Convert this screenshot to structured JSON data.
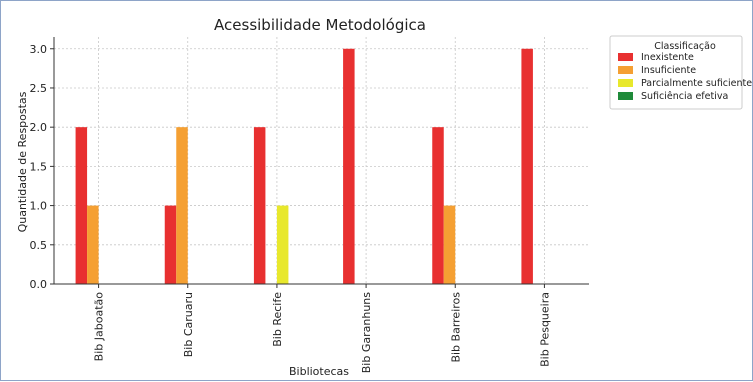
{
  "chart_data": {
    "type": "bar",
    "title": "Acessibilidade Metodológica",
    "xlabel": "Bibliotecas",
    "ylabel": "Quantidade de Respostas",
    "categories": [
      "Bib Jaboatão",
      "Bib Caruaru",
      "Bib Recife",
      "Bib Garanhuns",
      "Bib Barreiros",
      "Bib Pesqueira"
    ],
    "ylim": [
      0,
      3.15
    ],
    "yticks": [
      "0.0",
      "0.5",
      "1.0",
      "1.5",
      "2.0",
      "2.5",
      "3.0"
    ],
    "grid": true,
    "legend": {
      "title": "Classificação",
      "placement": "outside-top-right"
    },
    "series": [
      {
        "name": "Inexistente",
        "color": "#e83030",
        "values": [
          2,
          1,
          2,
          3,
          2,
          3
        ]
      },
      {
        "name": "Insuficiente",
        "color": "#f5a033",
        "values": [
          1,
          2,
          0,
          0,
          1,
          0
        ]
      },
      {
        "name": "Parcialmente suficiente",
        "color": "#e8e82c",
        "values": [
          0,
          0,
          1,
          0,
          0,
          0
        ]
      },
      {
        "name": "Suficiência efetiva",
        "color": "#1f8a3a",
        "values": [
          0,
          0,
          0,
          0,
          0,
          0
        ]
      }
    ]
  }
}
